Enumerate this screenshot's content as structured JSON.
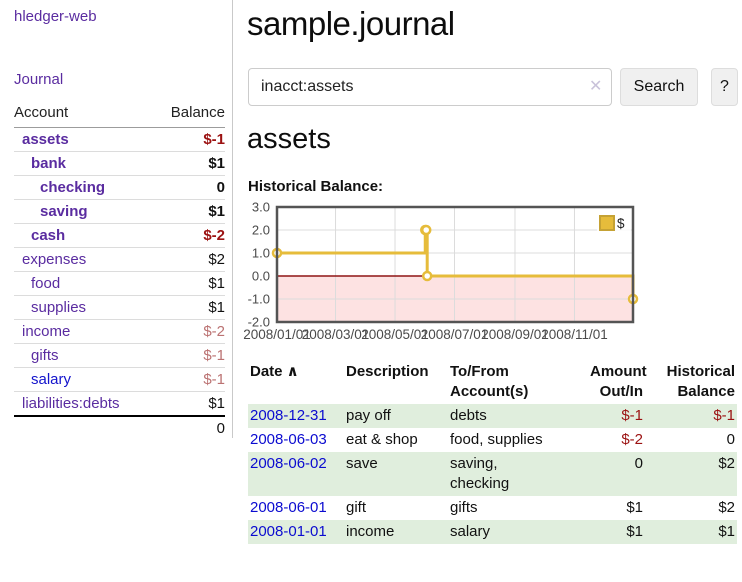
{
  "app": {
    "title": "hledger-web"
  },
  "sidebar": {
    "journal_link": "Journal",
    "accounts_table": {
      "headers": [
        "Account",
        "Balance"
      ],
      "rows": [
        {
          "name": "assets",
          "level": 0,
          "bold": true,
          "blue": false,
          "balance": "$-1",
          "neg": "strong"
        },
        {
          "name": "bank",
          "level": 1,
          "bold": true,
          "blue": false,
          "balance": "$1",
          "neg": ""
        },
        {
          "name": "checking",
          "level": 2,
          "bold": true,
          "blue": false,
          "balance": "0",
          "neg": ""
        },
        {
          "name": "saving",
          "level": 2,
          "bold": true,
          "blue": false,
          "balance": "$1",
          "neg": ""
        },
        {
          "name": "cash",
          "level": 1,
          "bold": true,
          "blue": false,
          "balance": "$-2",
          "neg": "strong"
        },
        {
          "name": "expenses",
          "level": 0,
          "bold": false,
          "blue": false,
          "balance": "$2",
          "neg": ""
        },
        {
          "name": "food",
          "level": 1,
          "bold": false,
          "blue": false,
          "balance": "$1",
          "neg": ""
        },
        {
          "name": "supplies",
          "level": 1,
          "bold": false,
          "blue": false,
          "balance": "$1",
          "neg": ""
        },
        {
          "name": "income",
          "level": 0,
          "bold": false,
          "blue": false,
          "balance": "$-2",
          "neg": "soft"
        },
        {
          "name": "gifts",
          "level": 1,
          "bold": false,
          "blue": false,
          "balance": "$-1",
          "neg": "soft"
        },
        {
          "name": "salary",
          "level": 1,
          "bold": false,
          "blue": true,
          "balance": "$-1",
          "neg": "soft"
        },
        {
          "name": "liabilities:debts",
          "level": 0,
          "bold": false,
          "blue": false,
          "balance": "$1",
          "neg": ""
        }
      ],
      "total": "0"
    }
  },
  "header": {
    "title": "sample.journal"
  },
  "search": {
    "query": "inacct:assets",
    "clear_icon": "✕",
    "button_label": "Search",
    "help_label": "?"
  },
  "account_page": {
    "heading": "assets",
    "chart_label": "Historical Balance:"
  },
  "chart_data": {
    "type": "line",
    "step": true,
    "title": "Historical Balance:",
    "xlabel": "",
    "ylabel": "",
    "ylim": [
      -2,
      3
    ],
    "yticks": [
      3,
      2,
      1,
      0,
      -1,
      -2
    ],
    "x_range_days": 365,
    "xticks": [
      {
        "label": "2008/01/01",
        "day": 0
      },
      {
        "label": "2008/03/01",
        "day": 60
      },
      {
        "label": "2008/05/01",
        "day": 121
      },
      {
        "label": "2008/07/01",
        "day": 182
      },
      {
        "label": "2008/09/01",
        "day": 244
      },
      {
        "label": "2008/11/01",
        "day": 305
      }
    ],
    "series": [
      {
        "name": "$",
        "color": "#e6bc3b",
        "points": [
          {
            "date": "2008-01-01",
            "day": 0,
            "value": 1
          },
          {
            "date": "2008-06-01",
            "day": 152,
            "value": 2
          },
          {
            "date": "2008-06-02",
            "day": 153,
            "value": 2
          },
          {
            "date": "2008-06-03",
            "day": 154,
            "value": 0
          },
          {
            "date": "2008-12-31",
            "day": 365,
            "value": -1
          }
        ]
      }
    ],
    "legend": {
      "label": "$",
      "position": "top-right"
    },
    "grid": true,
    "grid_color": "#dcdcdc",
    "border_color": "#545454",
    "tick_label_color": "#4a4a4a",
    "negative_fill": "#fde2e2",
    "zero_line_color": "#8f1414"
  },
  "register_table": {
    "columns": [
      {
        "line1": "Date",
        "line2": "",
        "align": "left",
        "sort_icon": "∧"
      },
      {
        "line1": "Description",
        "line2": "",
        "align": "left",
        "sort_icon": ""
      },
      {
        "line1": "To/From",
        "line2": "Account(s)",
        "align": "left",
        "sort_icon": ""
      },
      {
        "line1": "Amount",
        "line2": "Out/In",
        "align": "right",
        "sort_icon": ""
      },
      {
        "line1": "Historical",
        "line2": "Balance",
        "align": "right",
        "sort_icon": ""
      }
    ],
    "rows": [
      {
        "date": "2008-12-31",
        "description": "pay off",
        "accounts": [
          "debts"
        ],
        "amount": "$-1",
        "amount_negative": true,
        "balance": "$-1",
        "balance_negative": true
      },
      {
        "date": "2008-06-03",
        "description": "eat & shop",
        "accounts": [
          "food, supplies"
        ],
        "amount": "$-2",
        "amount_negative": true,
        "balance": "0",
        "balance_negative": false
      },
      {
        "date": "2008-06-02",
        "description": "save",
        "accounts": [
          "saving,",
          "checking"
        ],
        "amount": "0",
        "amount_negative": false,
        "balance": "$2",
        "balance_negative": false
      },
      {
        "date": "2008-06-01",
        "description": "gift",
        "accounts": [
          "gifts"
        ],
        "amount": "$1",
        "amount_negative": false,
        "balance": "$2",
        "balance_negative": false
      },
      {
        "date": "2008-01-01",
        "description": "income",
        "accounts": [
          "salary"
        ],
        "amount": "$1",
        "amount_negative": false,
        "balance": "$1",
        "balance_negative": false
      }
    ]
  },
  "colors": {
    "link_purple": "#5a2ca0",
    "link_blue": "#1414cc",
    "date_link_blue": "#0b0bd0",
    "negative_strong": "#9b1111",
    "negative_soft": "#bb7272",
    "row_green": "#e0eedd",
    "series_gold": "#e6bc3b",
    "chart_negative_fill": "#fde2e2",
    "chart_zero_line": "#8f1414",
    "chart_border": "#545454",
    "divider_gray": "#c9c9c9"
  }
}
